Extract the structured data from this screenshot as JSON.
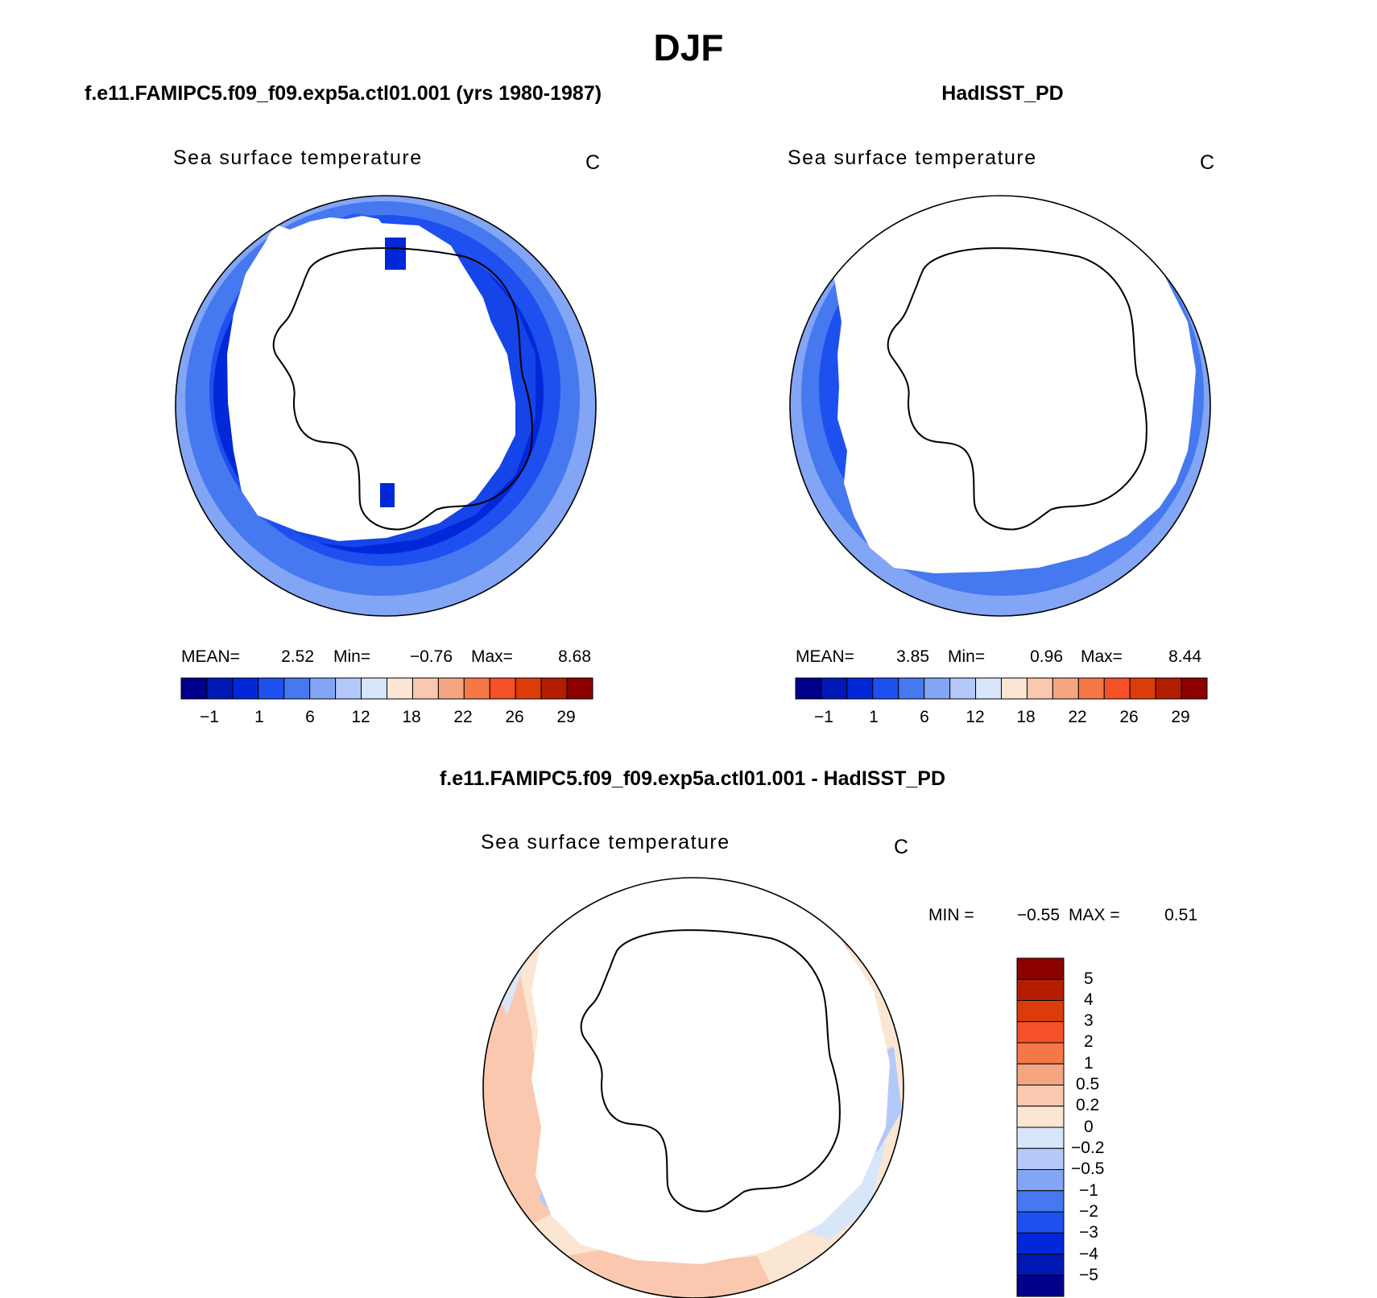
{
  "figure": {
    "title": "DJF"
  },
  "panels": [
    {
      "id": "model",
      "header": "f.e11.FAMIPC5.f09_f09.exp5a.ctl01.001 (yrs 1980-1987)",
      "variable": "Sea surface temperature",
      "units": "C",
      "stats": {
        "mean_label": "MEAN=",
        "mean": "2.52",
        "min_label": "Min=",
        "min": "−0.76",
        "max_label": "Max=",
        "max": "8.68"
      },
      "colorbar_ticks": [
        "−1",
        "1",
        "6",
        "12",
        "18",
        "22",
        "26",
        "29"
      ]
    },
    {
      "id": "obs",
      "header": "HadISST_PD",
      "variable": "Sea surface temperature",
      "units": "C",
      "stats": {
        "mean_label": "MEAN=",
        "mean": "3.85",
        "min_label": "Min=",
        "min": "0.96",
        "max_label": "Max=",
        "max": "8.44"
      },
      "colorbar_ticks": [
        "−1",
        "1",
        "6",
        "12",
        "18",
        "22",
        "26",
        "29"
      ]
    },
    {
      "id": "diff",
      "header": "f.e11.FAMIPC5.f09_f09.exp5a.ctl01.001 - HadISST_PD",
      "variable": "Sea surface temperature",
      "units": "C",
      "stats": {
        "min_label": "MIN =",
        "min": "−0.55",
        "max_label": "MAX =",
        "max": "0.51"
      },
      "colorbar_ticks": [
        "5",
        "4",
        "3",
        "2",
        "1",
        "0.5",
        "0.2",
        "0",
        "−0.2",
        "−0.5",
        "−1",
        "−2",
        "−3",
        "−4",
        "−5"
      ]
    }
  ],
  "colors": {
    "sst_palette": [
      "#00008c",
      "#0018b4",
      "#0028d8",
      "#1e50f0",
      "#4678f0",
      "#82a5f5",
      "#b4c8fa",
      "#d8e6fa",
      "#fae6d2",
      "#fac8af",
      "#f5a582",
      "#f57846",
      "#f55028",
      "#dc3c0a",
      "#b41e00",
      "#8c0000"
    ],
    "diff_palette_top_to_bottom": [
      "#8c0000",
      "#b41e00",
      "#dc3c0a",
      "#f55028",
      "#f57846",
      "#f5a582",
      "#fac8af",
      "#fae6d2",
      "#d8e6fa",
      "#b4c8fa",
      "#82a5f5",
      "#4678f0",
      "#1e50f0",
      "#0028d8",
      "#0018b4",
      "#00008c"
    ]
  }
}
